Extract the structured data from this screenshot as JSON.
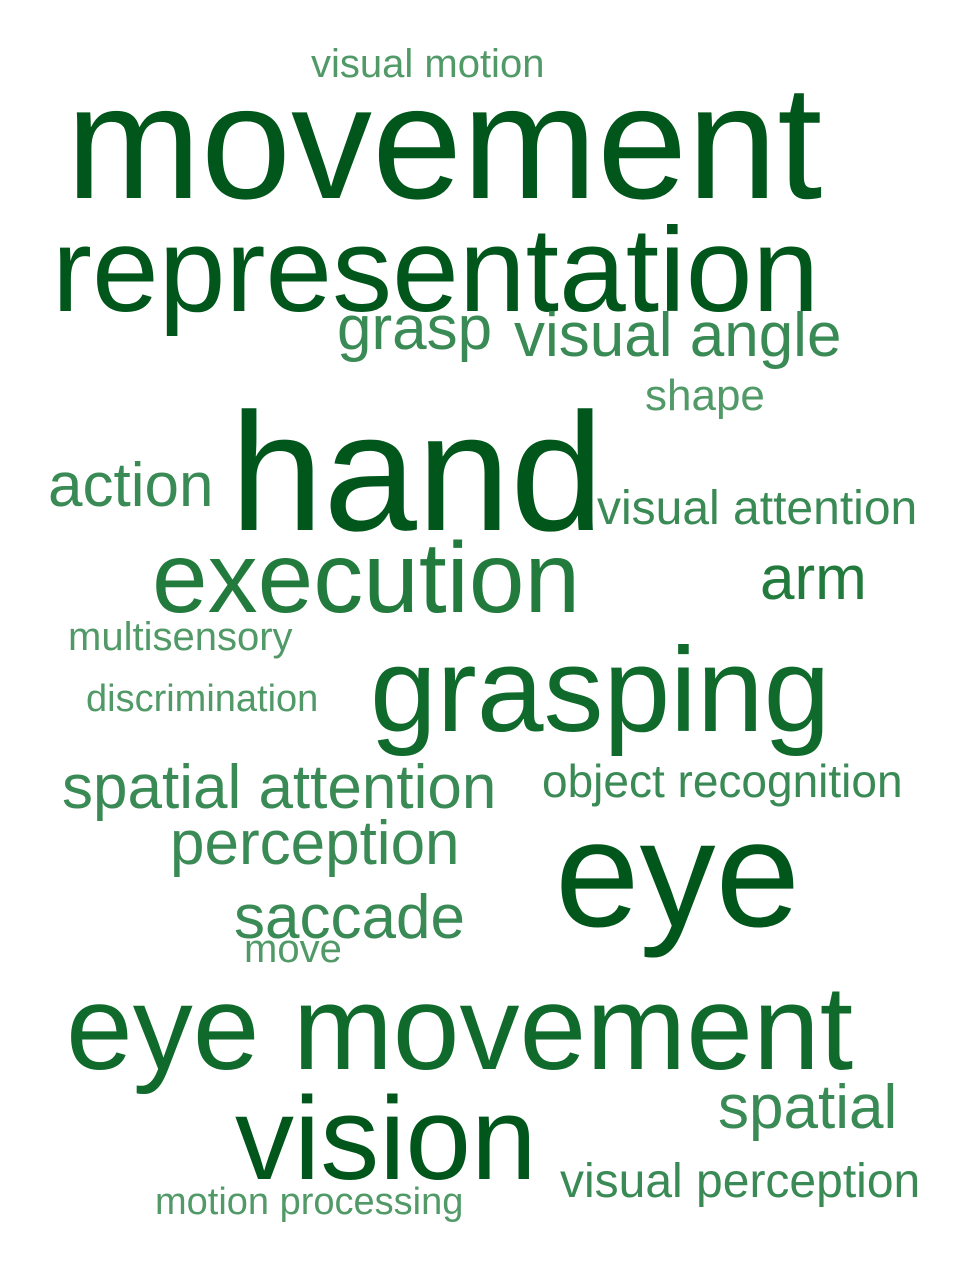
{
  "words": [
    {
      "text": "visual motion"
    },
    {
      "text": "movement"
    },
    {
      "text": "representation"
    },
    {
      "text": "grasp"
    },
    {
      "text": "visual angle"
    },
    {
      "text": "shape"
    },
    {
      "text": "hand"
    },
    {
      "text": "action"
    },
    {
      "text": "visual attention"
    },
    {
      "text": "execution"
    },
    {
      "text": "arm"
    },
    {
      "text": "multisensory"
    },
    {
      "text": "grasping"
    },
    {
      "text": "discrimination"
    },
    {
      "text": "spatial attention"
    },
    {
      "text": "object recognition"
    },
    {
      "text": "perception"
    },
    {
      "text": "eye"
    },
    {
      "text": "saccade"
    },
    {
      "text": "move"
    },
    {
      "text": "eye movement"
    },
    {
      "text": "vision"
    },
    {
      "text": "spatial"
    },
    {
      "text": "visual perception"
    },
    {
      "text": "motion processing"
    }
  ]
}
